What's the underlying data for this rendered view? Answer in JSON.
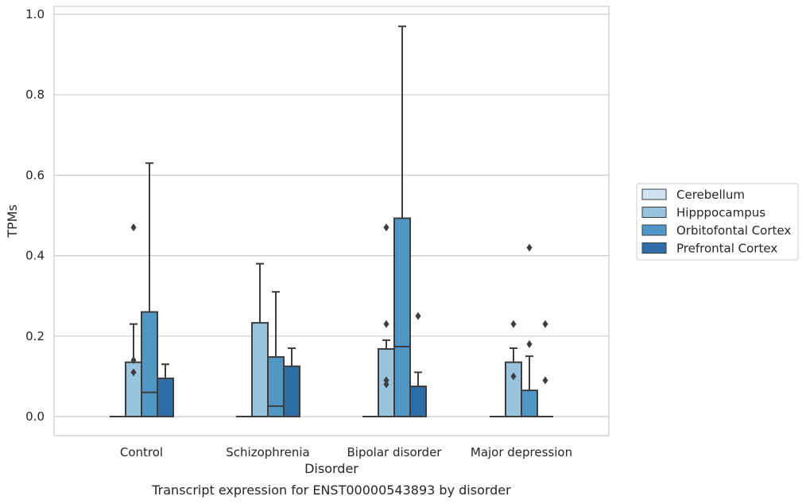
{
  "chart_data": {
    "type": "box",
    "caption": "Transcript expression for ENST00000543893 by disorder",
    "xlabel": "Disorder",
    "ylabel": "TPMs",
    "ylim": [
      -0.045,
      1.02
    ],
    "yticks": [
      "0.0",
      "0.2",
      "0.4",
      "0.6",
      "0.8",
      "1.0"
    ],
    "ytick_values": [
      0.0,
      0.2,
      0.4,
      0.6,
      0.8,
      1.0
    ],
    "grid": true,
    "legend_position": "right",
    "categories": [
      "Control",
      "Schizophrenia",
      "Bipolar disorder",
      "Major depression"
    ],
    "series": [
      {
        "name": "Cerebellum",
        "color": "#d1e2f2",
        "boxes": [
          {
            "q1": 0,
            "median": 0,
            "q3": 0,
            "whislo": 0,
            "whishi": 0,
            "fliers": []
          },
          {
            "q1": 0,
            "median": 0,
            "q3": 0,
            "whislo": 0,
            "whishi": 0,
            "fliers": []
          },
          {
            "q1": 0,
            "median": 0,
            "q3": 0,
            "whislo": 0,
            "whishi": 0,
            "fliers": []
          },
          {
            "q1": 0,
            "median": 0,
            "q3": 0,
            "whislo": 0,
            "whishi": 0,
            "fliers": []
          }
        ]
      },
      {
        "name": "Hipppocampus",
        "color": "#9ac4de",
        "boxes": [
          {
            "q1": 0,
            "median": 0,
            "q3": 0.135,
            "whislo": 0,
            "whishi": 0.23,
            "fliers": [
              0.47,
              0.14,
              0.11
            ]
          },
          {
            "q1": 0,
            "median": 0,
            "q3": 0.233,
            "whislo": 0,
            "whishi": 0.38,
            "fliers": []
          },
          {
            "q1": 0,
            "median": 0,
            "q3": 0.168,
            "whislo": 0,
            "whishi": 0.19,
            "fliers": [
              0.47,
              0.23,
              0.09,
              0.08
            ]
          },
          {
            "q1": 0,
            "median": 0,
            "q3": 0.135,
            "whislo": 0,
            "whishi": 0.17,
            "fliers": [
              0.23,
              0.1
            ]
          }
        ]
      },
      {
        "name": "Orbitofontal Cortex",
        "color": "#5097c6",
        "boxes": [
          {
            "q1": 0,
            "median": 0.06,
            "q3": 0.26,
            "whislo": 0,
            "whishi": 0.63,
            "fliers": []
          },
          {
            "q1": 0,
            "median": 0.026,
            "q3": 0.148,
            "whislo": 0,
            "whishi": 0.31,
            "fliers": []
          },
          {
            "q1": 0,
            "median": 0.174,
            "q3": 0.493,
            "whislo": 0,
            "whishi": 0.97,
            "fliers": []
          },
          {
            "q1": 0,
            "median": 0,
            "q3": 0.065,
            "whislo": 0,
            "whishi": 0.15,
            "fliers": [
              0.42,
              0.18
            ]
          }
        ]
      },
      {
        "name": "Prefrontal Cortex",
        "color": "#2f6ea8",
        "boxes": [
          {
            "q1": 0,
            "median": 0,
            "q3": 0.095,
            "whislo": 0,
            "whishi": 0.13,
            "fliers": []
          },
          {
            "q1": 0,
            "median": 0,
            "q3": 0.125,
            "whislo": 0,
            "whishi": 0.17,
            "fliers": []
          },
          {
            "q1": 0,
            "median": 0,
            "q3": 0.075,
            "whislo": 0,
            "whishi": 0.11,
            "fliers": [
              0.25
            ]
          },
          {
            "q1": 0,
            "median": 0,
            "q3": 0,
            "whislo": 0,
            "whishi": 0,
            "fliers": [
              0.23,
              0.09
            ]
          }
        ]
      }
    ],
    "colors": {
      "grid": "#cccccc",
      "frame": "#cccccc",
      "line": "#3d3d3d",
      "text": "#262626"
    }
  }
}
